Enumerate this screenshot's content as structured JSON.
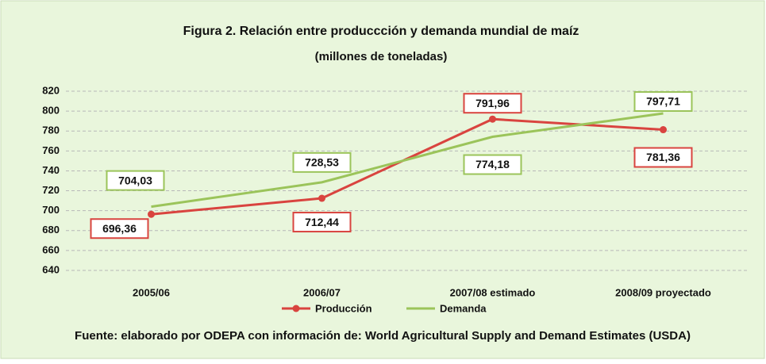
{
  "chart_data": {
    "type": "line",
    "title": "Figura 2. Relación entre produccción y demanda mundial de maíz",
    "subtitle": "(millones de toneladas)",
    "source": "Fuente: elaborado por ODEPA con información de: World Agricultural Supply and Demand Estimates (USDA)",
    "categories": [
      "2005/06",
      "2006/07",
      "2007/08 estimado",
      "2008/09 proyectado"
    ],
    "series": [
      {
        "name": "Producción",
        "color": "#d9443f",
        "values": [
          696.36,
          712.44,
          791.96,
          781.36
        ],
        "value_labels": [
          "696,36",
          "712,44",
          "791,96",
          "781,36"
        ]
      },
      {
        "name": "Demanda",
        "color": "#9bc45a",
        "values": [
          704.03,
          728.53,
          774.18,
          797.71
        ],
        "value_labels": [
          "704,03",
          "728,53",
          "774,18",
          "797,71"
        ]
      }
    ],
    "ylim": [
      640,
      820
    ],
    "yticks": [
      640,
      660,
      680,
      700,
      720,
      740,
      760,
      780,
      800,
      820
    ],
    "grid": true,
    "legend": "bottom"
  }
}
